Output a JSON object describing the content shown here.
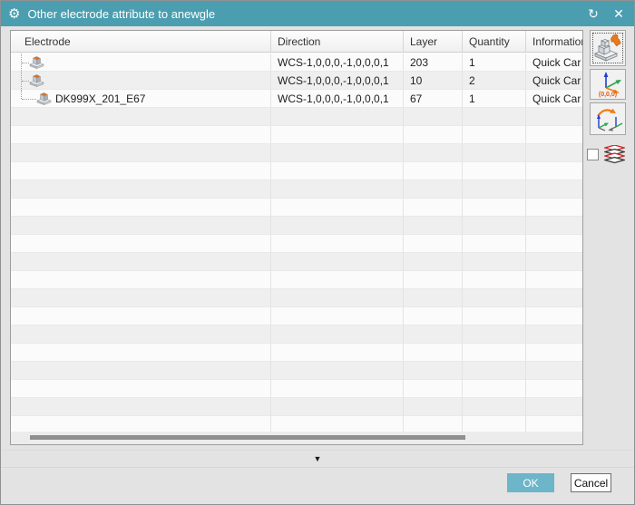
{
  "window": {
    "title": "Other electrode attribute to anewgle",
    "gear_icon": "⚙",
    "refresh_icon": "↻",
    "close_icon": "✕",
    "titlebar_color": "#4a9eb0"
  },
  "table": {
    "columns": [
      "Electrode",
      "Direction",
      "Layer",
      "Quantity",
      "Information"
    ],
    "rows": [
      {
        "electrode": "",
        "direction": "WCS-1,0,0,0,-1,0,0,0,1",
        "layer": "203",
        "quantity": "1",
        "information": "Quick Car",
        "tree": "branch"
      },
      {
        "electrode": "",
        "direction": "WCS-1,0,0,0,-1,0,0,0,1",
        "layer": "10",
        "quantity": "2",
        "information": "Quick Car",
        "tree": "branch"
      },
      {
        "electrode": "DK999X_201_E67",
        "direction": "WCS-1,0,0,0,-1,0,0,0,1",
        "layer": "67",
        "quantity": "1",
        "information": "Quick Car",
        "tree": "last"
      }
    ],
    "empty_row_count": 19
  },
  "side_panel": {
    "pick_electrode_icon": "electrode-block-with-hand",
    "csys_icon_label": "(0,0,0)",
    "transform_icon": "axes-rotate",
    "layers_icon": "stacked-layers",
    "checkbox_checked": false
  },
  "footer": {
    "collapse_arrow": "▼",
    "ok_label": "OK",
    "cancel_label": "Cancel"
  },
  "colors": {
    "accent_teal": "#4a9eb0",
    "ok_button": "#6db5c9",
    "electrode_top": "#e2711c",
    "stripe_gray": "#efefef"
  }
}
